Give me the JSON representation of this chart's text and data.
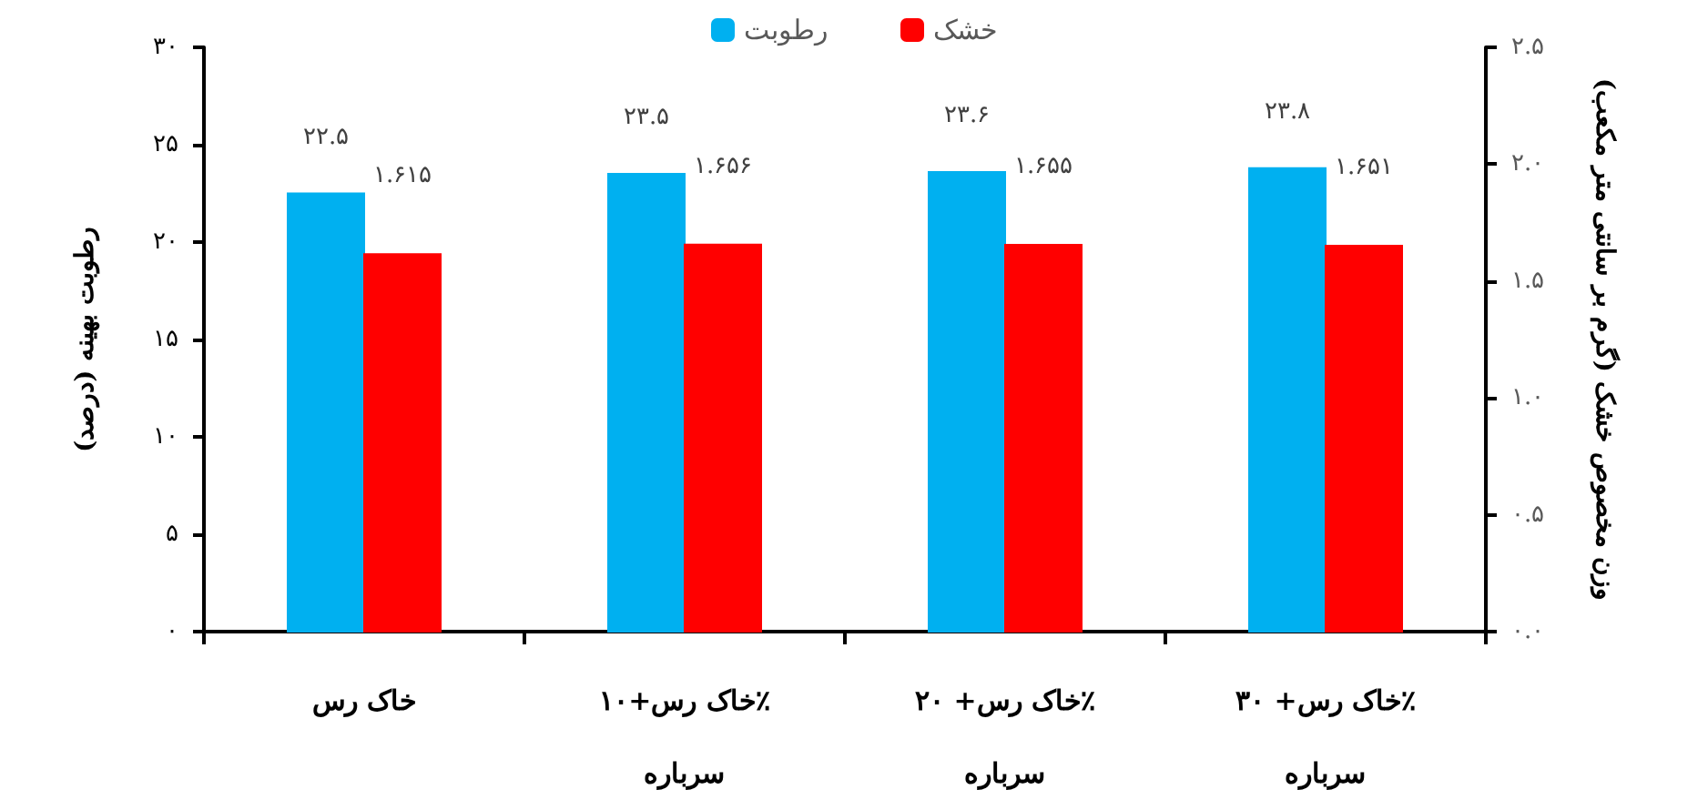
{
  "chart_data": {
    "type": "bar",
    "ylabel": "رطوبت بهینه (درصد)",
    "y2label": "وزن مخصوص خشک (گرم بر سانتی متر مکعب)",
    "categories": [
      "خاک رس",
      "خاک رس+۱۰٪ سرباره",
      "خاک رس+ ۲۰٪ سرباره",
      "خاک رس+ ۳۰٪ سرباره"
    ],
    "series": [
      {
        "name": "رطوبت",
        "color": "#00b0f0",
        "values": [
          22.5,
          23.5,
          23.6,
          23.8
        ],
        "value_labels": [
          "۲۲.۵",
          "۲۳.۵",
          "۲۳.۶",
          "۲۳.۸"
        ]
      },
      {
        "name": "خشک",
        "color": "#ff0000",
        "axis": "y2",
        "values": [
          1.615,
          1.656,
          1.655,
          1.651
        ],
        "value_labels": [
          "۱.۶۱۵",
          "۱.۶۵۶",
          "۱.۶۵۵",
          "۱.۶۵۱"
        ]
      }
    ],
    "ylim": [
      0,
      30
    ],
    "yticks": [
      {
        "value": 0,
        "label": "۰"
      },
      {
        "value": 5,
        "label": "۵"
      },
      {
        "value": 10,
        "label": "۱۰"
      },
      {
        "value": 15,
        "label": "۱۵"
      },
      {
        "value": 20,
        "label": "۲۰"
      },
      {
        "value": 25,
        "label": "۲۵"
      },
      {
        "value": 30,
        "label": "۳۰"
      }
    ],
    "y2lim": [
      0,
      2.5
    ],
    "y2ticks": [
      {
        "value": 0,
        "label": "۰.۰"
      },
      {
        "value": 0.5,
        "label": "۰.۵"
      },
      {
        "value": 1,
        "label": "۱.۰"
      },
      {
        "value": 1.5,
        "label": "۱.۵"
      },
      {
        "value": 2,
        "label": "۲.۰"
      },
      {
        "value": 2.5,
        "label": "۲.۵"
      }
    ],
    "grid": false,
    "legend": "top"
  }
}
